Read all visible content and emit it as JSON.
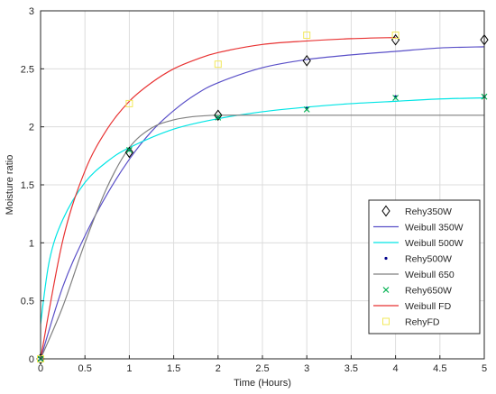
{
  "chart_data": {
    "type": "line",
    "title": "",
    "xlabel": "Time (Hours)",
    "ylabel": "Moisture ratio",
    "xlim": [
      0,
      5
    ],
    "ylim": [
      0,
      3
    ],
    "xticks": [
      0,
      0.5,
      1,
      1.5,
      2,
      2.5,
      3,
      3.5,
      4,
      4.5,
      5
    ],
    "yticks": [
      0,
      0.5,
      1,
      1.5,
      2,
      2.5,
      3
    ],
    "grid": true,
    "legend_position": "bottom-right",
    "series": [
      {
        "name": "Rehy350W",
        "kind": "marker",
        "marker": "diamond",
        "color": "#000000",
        "x": [
          0,
          1,
          2,
          3,
          4,
          5
        ],
        "y": [
          0,
          1.78,
          2.1,
          2.57,
          2.75,
          2.75
        ]
      },
      {
        "name": "Weibull 350W",
        "kind": "line",
        "color": "#5a50c8",
        "x": [
          0,
          0.25,
          0.5,
          0.75,
          1,
          1.25,
          1.5,
          1.75,
          2,
          2.5,
          3,
          3.5,
          4,
          4.5,
          5
        ],
        "y": [
          0,
          0.62,
          1.06,
          1.42,
          1.72,
          1.96,
          2.14,
          2.28,
          2.38,
          2.51,
          2.58,
          2.62,
          2.65,
          2.68,
          2.69
        ]
      },
      {
        "name": "Weibull 500W",
        "kind": "line",
        "color": "#00e5e5",
        "x": [
          0,
          0.1,
          0.25,
          0.5,
          0.75,
          1,
          1.5,
          2,
          2.5,
          3,
          3.5,
          4,
          4.5,
          5
        ],
        "y": [
          0.3,
          0.85,
          1.2,
          1.52,
          1.7,
          1.82,
          1.98,
          2.07,
          2.13,
          2.17,
          2.2,
          2.22,
          2.24,
          2.25
        ]
      },
      {
        "name": "Rehy500W",
        "kind": "marker",
        "marker": "dot",
        "color": "#00008b",
        "x": [
          0,
          1,
          2,
          3,
          4,
          5
        ],
        "y": [
          0,
          1.8,
          2.08,
          2.16,
          2.26,
          2.26
        ]
      },
      {
        "name": "Weibull 650",
        "kind": "line",
        "color": "#808080",
        "x": [
          0,
          0.25,
          0.5,
          0.75,
          1,
          1.25,
          1.5,
          1.75,
          2,
          2.5,
          3,
          3.5,
          4,
          4.5,
          5
        ],
        "y": [
          0,
          0.45,
          1.0,
          1.48,
          1.82,
          1.99,
          2.06,
          2.09,
          2.1,
          2.1,
          2.1,
          2.1,
          2.1,
          2.1,
          2.1
        ]
      },
      {
        "name": "Rehy650W",
        "kind": "marker",
        "marker": "x",
        "color": "#00b050",
        "x": [
          0,
          1,
          2,
          3,
          4,
          5
        ],
        "y": [
          0,
          1.8,
          2.08,
          2.15,
          2.25,
          2.26
        ]
      },
      {
        "name": "Weibull FD",
        "kind": "line",
        "color": "#e83232",
        "x": [
          0,
          0.25,
          0.5,
          0.75,
          1,
          1.25,
          1.5,
          1.75,
          2,
          2.5,
          3,
          3.5,
          4
        ],
        "y": [
          0,
          1.02,
          1.62,
          1.98,
          2.22,
          2.38,
          2.5,
          2.58,
          2.64,
          2.71,
          2.74,
          2.76,
          2.77
        ]
      },
      {
        "name": "RehyFD",
        "kind": "marker",
        "marker": "square",
        "color": "#f2e85a",
        "x": [
          0,
          1,
          2,
          3,
          4
        ],
        "y": [
          0,
          2.2,
          2.54,
          2.79,
          2.79
        ]
      }
    ]
  }
}
